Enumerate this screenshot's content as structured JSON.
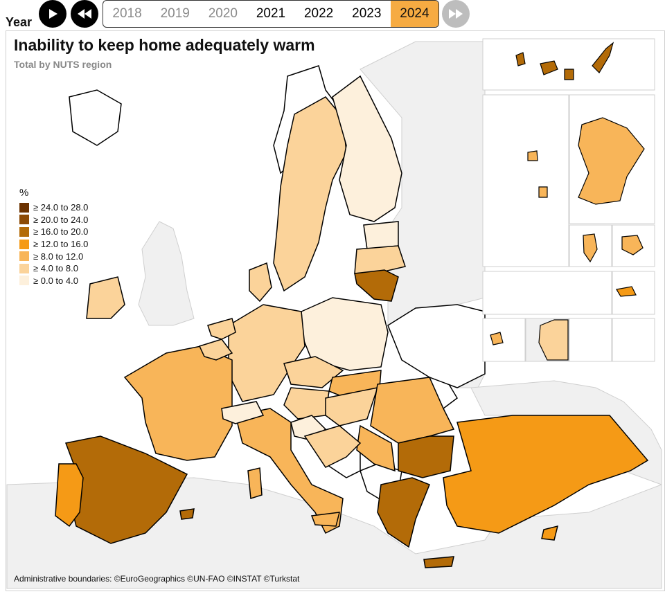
{
  "controls": {
    "year_label": "Year",
    "play_icon": "play-icon",
    "rewind_icon": "rewind-icon",
    "forward_icon": "fast-forward-icon",
    "years": [
      {
        "label": "2018",
        "state": "inactive"
      },
      {
        "label": "2019",
        "state": "inactive"
      },
      {
        "label": "2020",
        "state": "inactive"
      },
      {
        "label": "2021",
        "state": "active"
      },
      {
        "label": "2022",
        "state": "active"
      },
      {
        "label": "2023",
        "state": "active"
      },
      {
        "label": "2024",
        "state": "selected"
      }
    ]
  },
  "map": {
    "title": "Inability to keep home adequately warm",
    "subtitle": "Total by NUTS region",
    "legend": {
      "unit": "%",
      "classes": [
        {
          "label": "≥ 24.0 to 28.0",
          "color": "#6b3200"
        },
        {
          "label": "≥ 20.0 to 24.0",
          "color": "#8c4a05"
        },
        {
          "label": "≥ 16.0 to 20.0",
          "color": "#b36b08"
        },
        {
          "label": "≥ 12.0 to 16.0",
          "color": "#f59a16"
        },
        {
          "label": "≥ 8.0 to 12.0",
          "color": "#f8b559"
        },
        {
          "label": "≥ 4.0 to 8.0",
          "color": "#fbd39a"
        },
        {
          "label": "≥ 0.0 to 4.0",
          "color": "#fdf0dc"
        }
      ]
    },
    "colors": {
      "sea": "#ffffff",
      "non_eu_land": "#f0f0f0",
      "no_data": "#ffffff",
      "coast": "#c3d9e9"
    },
    "credits": "Administrative boundaries: ©EuroGeographics ©UN-FAO ©INSTAT ©Turkstat"
  }
}
